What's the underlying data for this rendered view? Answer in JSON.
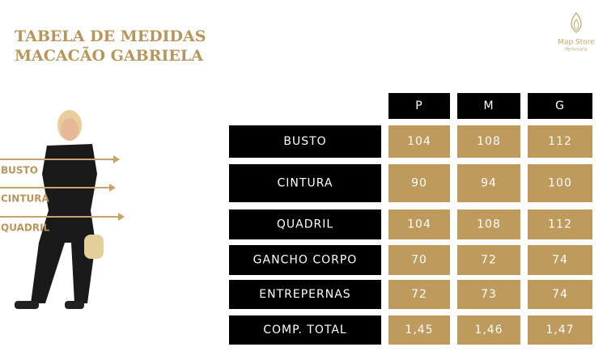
{
  "header": {
    "title_lines": [
      "TABELA DE MEDIDAS",
      "MACACÃO GABRIELA"
    ]
  },
  "logo": {
    "name": "Map Store",
    "tagline": "Perfumaria"
  },
  "figure": {
    "labels": [
      "BUSTO",
      "CINTURA",
      "QUADRIL"
    ]
  },
  "table": {
    "columns": [
      "P",
      "M",
      "G"
    ],
    "rows": [
      {
        "label": "BUSTO",
        "cells": [
          "104",
          "108",
          "112"
        ]
      },
      {
        "label": "CINTURA",
        "cells": [
          "90",
          "94",
          "100"
        ]
      },
      {
        "label": "QUADRIL",
        "cells": [
          "104",
          "108",
          "112"
        ]
      },
      {
        "label": "GANCHO CORPO",
        "cells": [
          "70",
          "72",
          "74"
        ]
      },
      {
        "label": "ENTREPERNAS",
        "cells": [
          "72",
          "73",
          "74"
        ]
      },
      {
        "label": "COMP. TOTAL",
        "cells": [
          "1,45",
          "1,46",
          "1,47"
        ]
      }
    ]
  }
}
